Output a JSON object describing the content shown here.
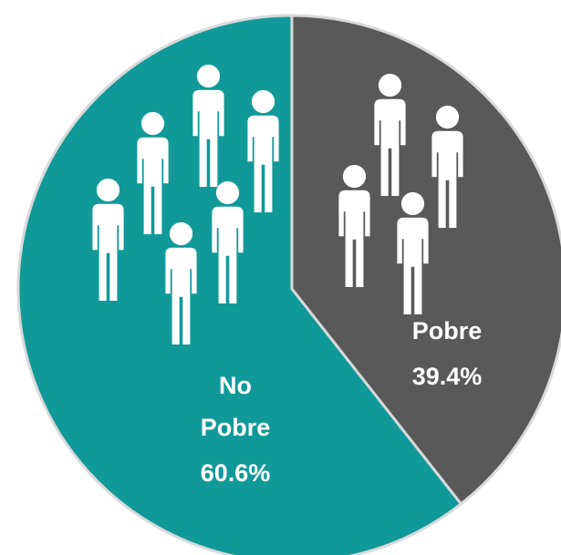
{
  "chart_data": {
    "type": "pie",
    "categories": [
      "Pobre",
      "No Pobre"
    ],
    "values": [
      39.4,
      60.6
    ],
    "value_labels": [
      "39.4%",
      "60.6%"
    ],
    "colors": [
      "#595959",
      "#11999a"
    ]
  }
}
